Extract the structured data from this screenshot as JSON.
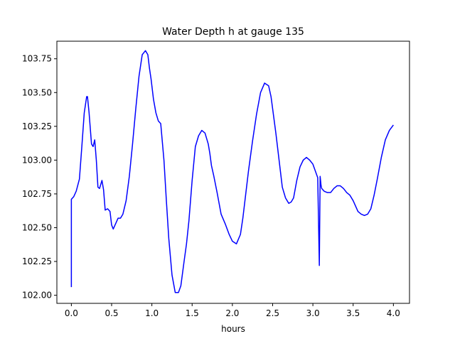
{
  "chart_data": {
    "type": "line",
    "title": "Water Depth h at gauge 135",
    "xlabel": "hours",
    "ylabel": "",
    "xlim": [
      -0.18,
      4.2
    ],
    "ylim": [
      101.94,
      103.88
    ],
    "xticks": [
      0.0,
      0.5,
      1.0,
      1.5,
      2.0,
      2.5,
      3.0,
      3.5,
      4.0
    ],
    "xtick_labels": [
      "0.0",
      "0.5",
      "1.0",
      "1.5",
      "2.0",
      "2.5",
      "3.0",
      "3.5",
      "4.0"
    ],
    "yticks": [
      102.0,
      102.25,
      102.5,
      102.75,
      103.0,
      103.25,
      103.5,
      103.75
    ],
    "ytick_labels": [
      "102.00",
      "102.25",
      "102.50",
      "102.75",
      "103.00",
      "103.25",
      "103.50",
      "103.75"
    ],
    "grid": false,
    "series": [
      {
        "name": "",
        "color": "#0000ff",
        "x": [
          0.0,
          0.0,
          0.03,
          0.06,
          0.1,
          0.13,
          0.16,
          0.19,
          0.2,
          0.22,
          0.25,
          0.27,
          0.29,
          0.31,
          0.33,
          0.35,
          0.38,
          0.4,
          0.42,
          0.45,
          0.48,
          0.5,
          0.52,
          0.55,
          0.58,
          0.61,
          0.64,
          0.68,
          0.72,
          0.76,
          0.8,
          0.84,
          0.88,
          0.92,
          0.95,
          0.97,
          0.99,
          1.02,
          1.05,
          1.08,
          1.11,
          1.15,
          1.18,
          1.21,
          1.25,
          1.29,
          1.33,
          1.36,
          1.4,
          1.43,
          1.46,
          1.5,
          1.54,
          1.58,
          1.62,
          1.66,
          1.7,
          1.72,
          1.74,
          1.77,
          1.81,
          1.86,
          1.91,
          1.96,
          2.0,
          2.05,
          2.1,
          2.13,
          2.16,
          2.2,
          2.25,
          2.3,
          2.35,
          2.4,
          2.45,
          2.48,
          2.5,
          2.54,
          2.58,
          2.62,
          2.66,
          2.7,
          2.73,
          2.76,
          2.8,
          2.84,
          2.88,
          2.92,
          2.96,
          3.0,
          3.03,
          3.06,
          3.08,
          3.09,
          3.095,
          3.1,
          3.105,
          3.11,
          3.14,
          3.18,
          3.22,
          3.26,
          3.3,
          3.34,
          3.38,
          3.42,
          3.46,
          3.5,
          3.53,
          3.56,
          3.6,
          3.64,
          3.68,
          3.72,
          3.76,
          3.8,
          3.85,
          3.9,
          3.95,
          4.0
        ],
        "y": [
          102.06,
          102.71,
          102.73,
          102.77,
          102.86,
          103.1,
          103.35,
          103.47,
          103.47,
          103.35,
          103.12,
          103.1,
          103.15,
          103.0,
          102.8,
          102.79,
          102.85,
          102.78,
          102.63,
          102.64,
          102.62,
          102.52,
          102.49,
          102.53,
          102.57,
          102.57,
          102.6,
          102.7,
          102.88,
          103.12,
          103.38,
          103.62,
          103.78,
          103.81,
          103.78,
          103.68,
          103.6,
          103.45,
          103.35,
          103.29,
          103.27,
          103.0,
          102.7,
          102.42,
          102.15,
          102.02,
          102.02,
          102.07,
          102.25,
          102.38,
          102.55,
          102.85,
          103.1,
          103.18,
          103.22,
          103.2,
          103.12,
          103.05,
          102.96,
          102.88,
          102.76,
          102.6,
          102.53,
          102.45,
          102.4,
          102.38,
          102.45,
          102.57,
          102.72,
          102.92,
          103.14,
          103.34,
          103.5,
          103.57,
          103.55,
          103.47,
          103.38,
          103.2,
          103.0,
          102.8,
          102.72,
          102.68,
          102.69,
          102.72,
          102.85,
          102.95,
          103.0,
          103.02,
          103.0,
          102.97,
          102.92,
          102.87,
          102.22,
          102.88,
          102.85,
          102.82,
          102.8,
          102.79,
          102.77,
          102.76,
          102.76,
          102.79,
          102.81,
          102.81,
          102.79,
          102.76,
          102.74,
          102.7,
          102.66,
          102.62,
          102.6,
          102.59,
          102.6,
          102.64,
          102.74,
          102.86,
          103.02,
          103.15,
          103.22,
          103.26
        ]
      }
    ]
  }
}
